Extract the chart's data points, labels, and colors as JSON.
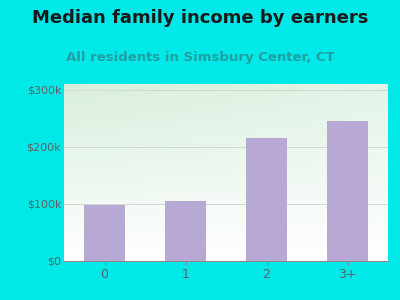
{
  "title": "Median family income by earners",
  "subtitle": "All residents in Simsbury Center, CT",
  "categories": [
    "0",
    "1",
    "2",
    "3+"
  ],
  "values": [
    98000,
    105000,
    215000,
    245000
  ],
  "bar_color": "#b8a8d4",
  "background_outer": "#00e8e8",
  "background_inner_topleft": "#d8eedd",
  "background_inner_bottomright": "#ffffff",
  "ylim": [
    0,
    310000
  ],
  "yticks": [
    0,
    100000,
    200000,
    300000
  ],
  "ytick_labels": [
    "$0",
    "$100k",
    "$200k",
    "$300k"
  ],
  "title_fontsize": 13,
  "subtitle_fontsize": 9.5,
  "title_color": "#1a1a1a",
  "subtitle_color": "#20a0a0",
  "tick_color": "#606060",
  "grid_color": "#d0d8d0",
  "bar_width": 0.5
}
